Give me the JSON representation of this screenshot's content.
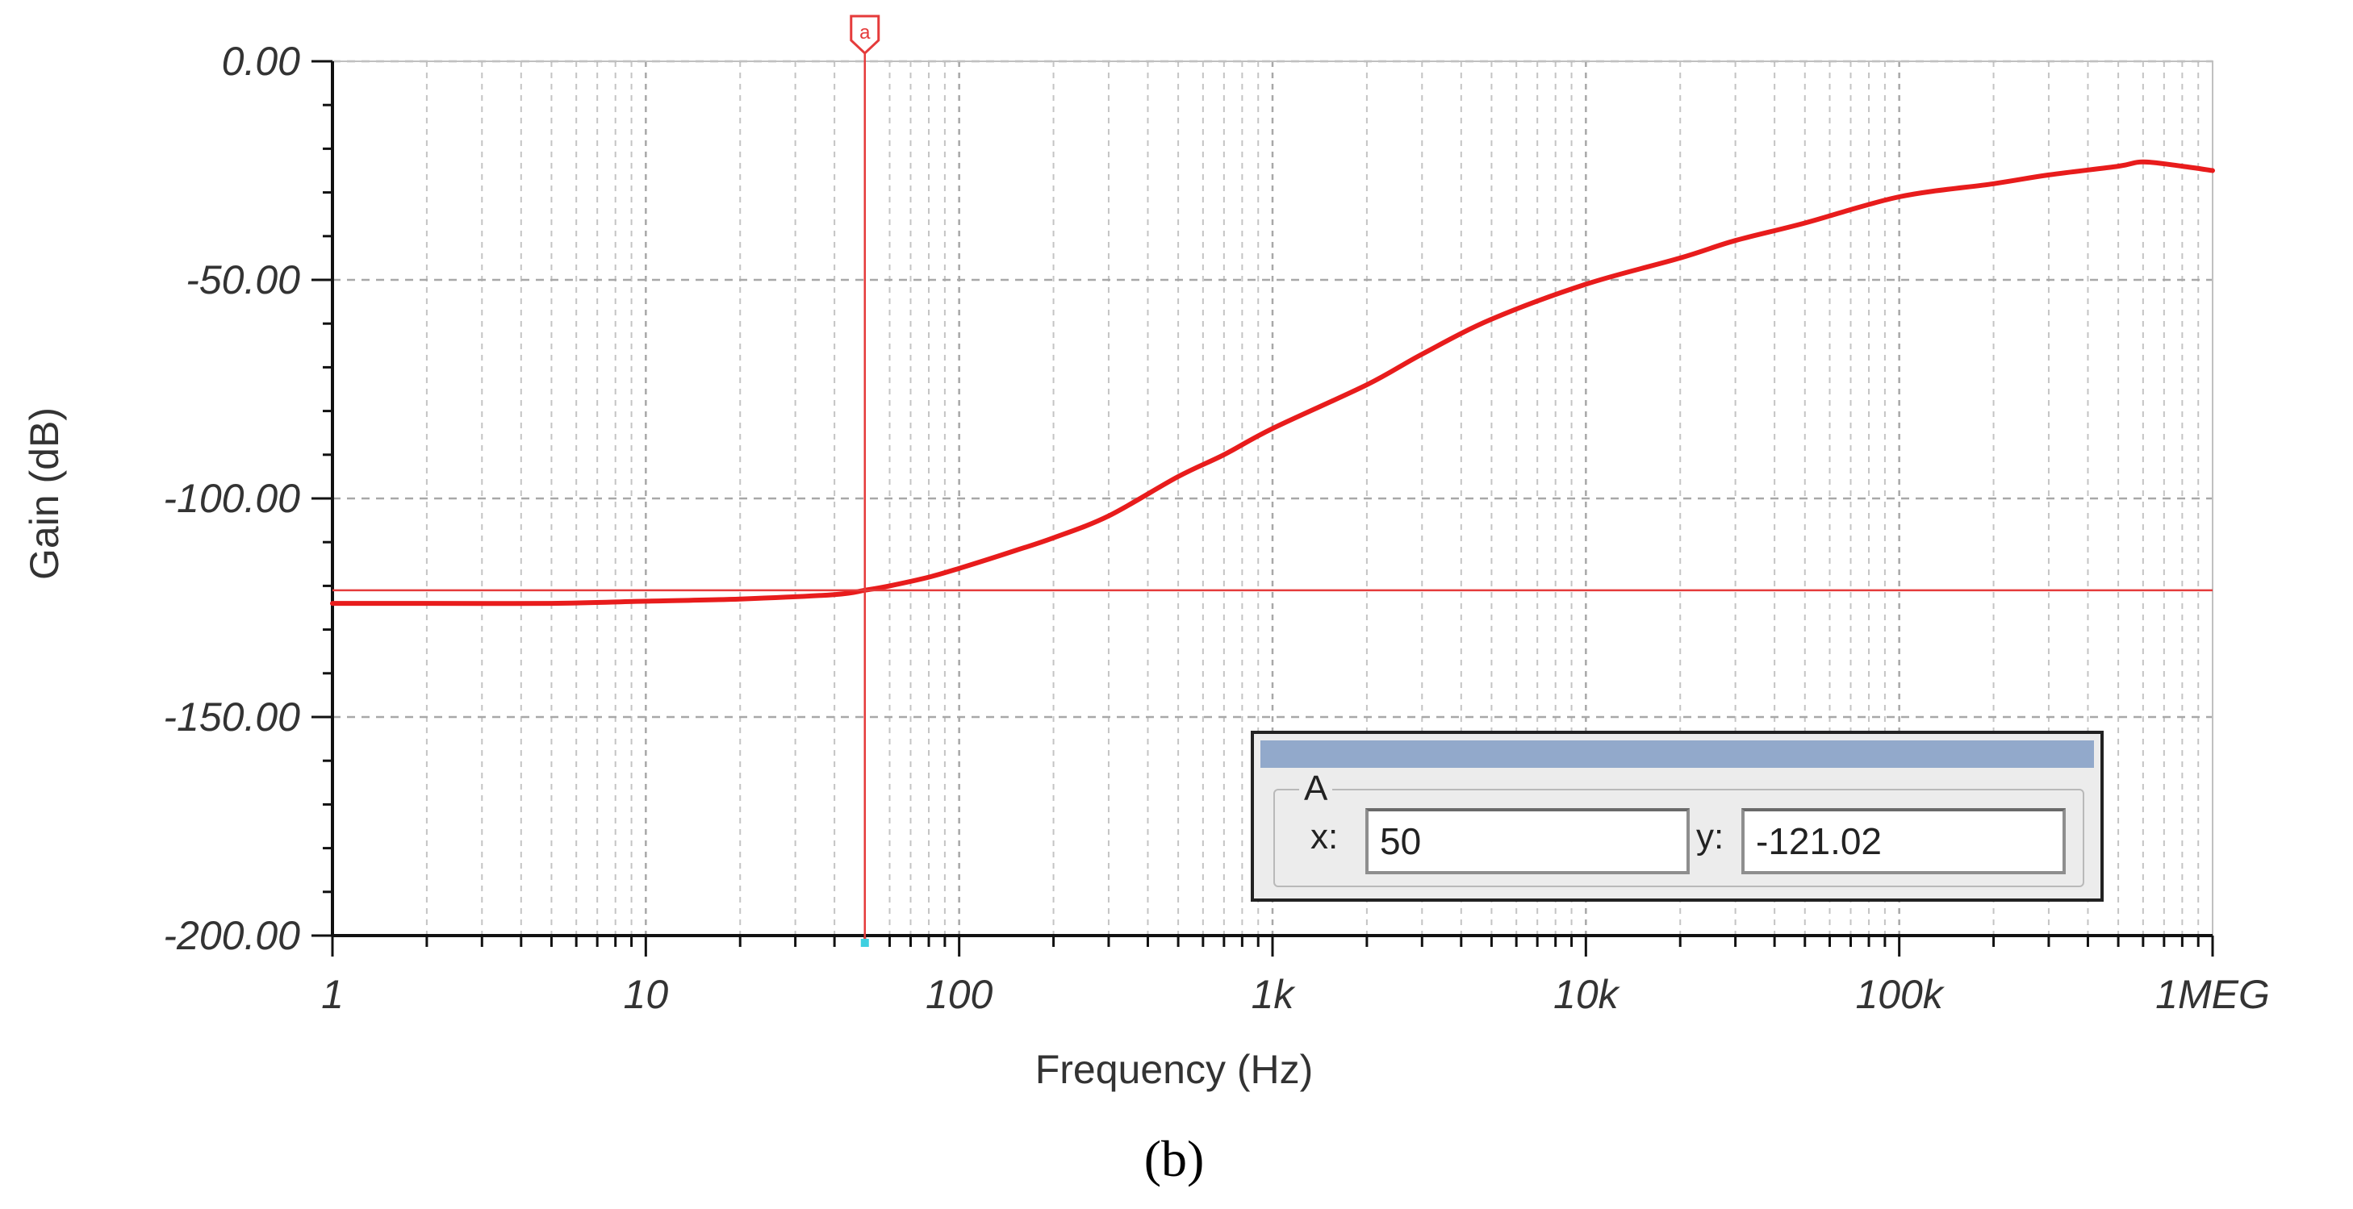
{
  "chart_data": {
    "type": "line",
    "title": "",
    "xlabel": "Frequency (Hz)",
    "ylabel": "Gain (dB)",
    "xscale": "log",
    "xlim": [
      1,
      1000000
    ],
    "ylim": [
      -200,
      0
    ],
    "grid": true,
    "x_ticks": [
      "1",
      "10",
      "100",
      "1k",
      "10k",
      "100k",
      "1MEG"
    ],
    "y_ticks": [
      "0.00",
      "-50.00",
      "-100.00",
      "-150.00",
      "-200.00"
    ],
    "series": [
      {
        "color": "#e81c1c",
        "x": [
          1,
          2,
          5,
          10,
          20,
          40,
          50,
          60,
          80,
          100,
          150,
          200,
          300,
          500,
          700,
          1000,
          2000,
          3000,
          5000,
          10000,
          20000,
          30000,
          50000,
          100000,
          200000,
          300000,
          500000,
          600000,
          800000,
          1000000
        ],
        "y": [
          -124,
          -124,
          -124,
          -123.5,
          -123,
          -122,
          -121,
          -120,
          -118,
          -116,
          -112,
          -109,
          -104,
          -95,
          -90,
          -84,
          -74,
          -67,
          -59,
          -51,
          -45,
          -41,
          -37,
          -31,
          -28,
          -26,
          -24,
          -23,
          -24,
          -25
        ]
      }
    ],
    "cursor": {
      "label": "a",
      "color": "#e53b3b",
      "x": 50,
      "y": -121.02
    }
  },
  "cursor_readout": {
    "group": "A",
    "x_label": "x:",
    "x_value": "50",
    "y_label": "y:",
    "y_value": "-121.02"
  },
  "caption": "(b)"
}
